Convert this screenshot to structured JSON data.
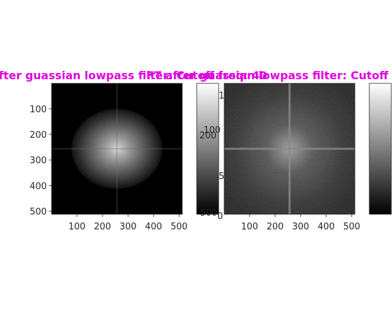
{
  "figure": {
    "titles": {
      "left": "fter guassian lowpass filter: Cutoff freq: 40",
      "right": "FT after guassian lowpass filter: Cutoff"
    },
    "colorbar_fragments": {
      "left_top": "1",
      "left_mid": "100",
      "left_mid2": "200",
      "left_low": "5",
      "left_bottom": "500",
      "right_zero": "0"
    }
  },
  "chart_data": [
    {
      "type": "heatmap",
      "title": "fter guassian lowpass filter: Cutoff freq: 40",
      "colormap": "gray",
      "xlim": [
        1,
        512
      ],
      "ylim": [
        1,
        512
      ],
      "x_reversed": false,
      "y_reversed": true,
      "xticks": [
        100,
        200,
        300,
        400,
        500
      ],
      "yticks": [
        100,
        200,
        300,
        400,
        500
      ],
      "content": "log-magnitude spectrum, bright disk centred at (256,256) fading to black outside radius ~120; faint horizontal and vertical lines through centre",
      "colorbar": {
        "visible_labels": [
          "1",
          "100",
          "200",
          "500"
        ]
      }
    },
    {
      "type": "heatmap",
      "title": "FT after guassian lowpass filter: Cutoff",
      "colormap": "gray",
      "xlim": [
        1,
        512
      ],
      "ylim": [
        1,
        512
      ],
      "x_reversed": false,
      "y_reversed": true,
      "xticks": [
        100,
        200,
        300,
        400,
        500
      ],
      "yticks": [],
      "content": "log-magnitude spectrum of unfiltered image, noisy gray texture over whole area, bright cross through centre (256,256)",
      "colorbar": {
        "visible_labels": [
          "0"
        ]
      }
    }
  ]
}
